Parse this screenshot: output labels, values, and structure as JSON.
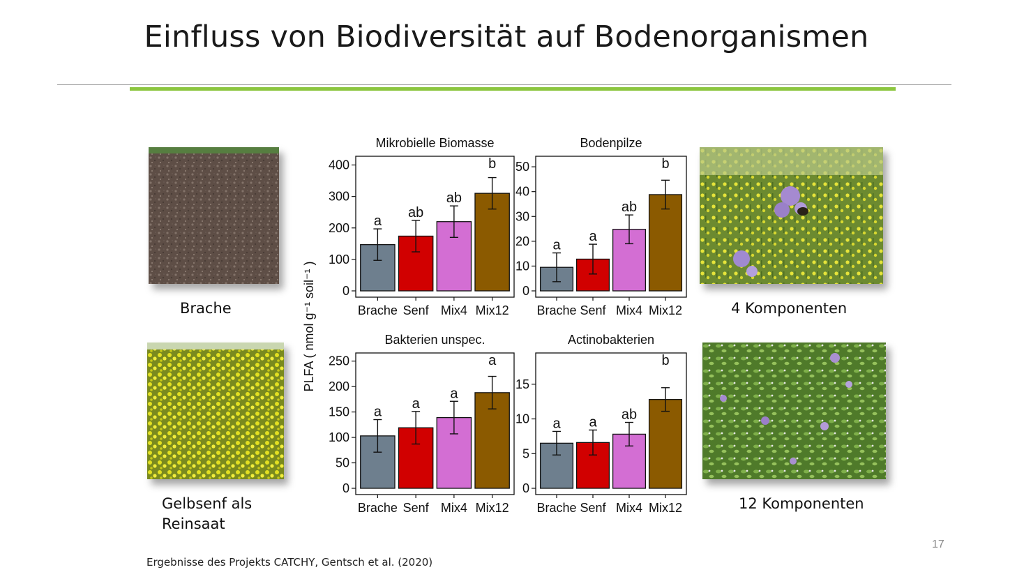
{
  "slide": {
    "title": "Einfluss von Biodiversität auf Bodenorganismen",
    "footer": "Ergebnisse des Projekts CATCHY, Gentsch et al. (2020)",
    "page_number": "17"
  },
  "photos": {
    "brache": {
      "caption": "Brache"
    },
    "senf": {
      "caption_line1": "Gelbsenf als",
      "caption_line2": "Reinsaat"
    },
    "mix4": {
      "caption": "4 Komponenten"
    },
    "mix12": {
      "caption": "12 Komponenten"
    }
  },
  "y_axis_label": "PLFA ( nmol g⁻¹ soil⁻¹ )",
  "chart_data": [
    {
      "type": "bar",
      "title": "Mikrobielle Biomasse",
      "categories": [
        "Brache",
        "Senf",
        "Mix4",
        "Mix12"
      ],
      "values": [
        147,
        174,
        220,
        310
      ],
      "errors": [
        50,
        50,
        50,
        50
      ],
      "letters": [
        "a",
        "ab",
        "ab",
        "b"
      ],
      "yticks": [
        0,
        100,
        200,
        300,
        400
      ],
      "ylim": [
        0,
        410
      ],
      "colors": [
        "#6e7f8e",
        "#d10000",
        "#d36ed3",
        "#8b5a00"
      ]
    },
    {
      "type": "bar",
      "title": "Bodenpilze",
      "categories": [
        "Brache",
        "Senf",
        "Mix4",
        "Mix12"
      ],
      "values": [
        9.5,
        12.8,
        24.8,
        38.8
      ],
      "errors": [
        5.8,
        6,
        5.8,
        5.8
      ],
      "letters": [
        "a",
        "a",
        "ab",
        "b"
      ],
      "yticks": [
        0,
        10,
        20,
        30,
        40,
        50
      ],
      "ylim": [
        0,
        52
      ],
      "colors": [
        "#6e7f8e",
        "#d10000",
        "#d36ed3",
        "#8b5a00"
      ]
    },
    {
      "type": "bar",
      "title": "Bakterien unspec.",
      "categories": [
        "Brache",
        "Senf",
        "Mix4",
        "Mix12"
      ],
      "values": [
        103,
        119,
        139,
        188
      ],
      "errors": [
        32,
        32,
        32,
        32
      ],
      "letters": [
        "a",
        "a",
        "a",
        "a"
      ],
      "yticks": [
        0,
        50,
        100,
        150,
        200,
        250
      ],
      "ylim": [
        0,
        255
      ],
      "colors": [
        "#6e7f8e",
        "#d10000",
        "#d36ed3",
        "#8b5a00"
      ]
    },
    {
      "type": "bar",
      "title": "Actinobakterien",
      "categories": [
        "Brache",
        "Senf",
        "Mix4",
        "Mix12"
      ],
      "values": [
        6.5,
        6.6,
        7.8,
        12.8
      ],
      "errors": [
        1.7,
        1.8,
        1.7,
        1.7
      ],
      "letters": [
        "a",
        "a",
        "ab",
        "b"
      ],
      "yticks": [
        0,
        5,
        10,
        15
      ],
      "ylim": [
        0,
        18.7
      ],
      "colors": [
        "#6e7f8e",
        "#d10000",
        "#d36ed3",
        "#8b5a00"
      ]
    }
  ]
}
